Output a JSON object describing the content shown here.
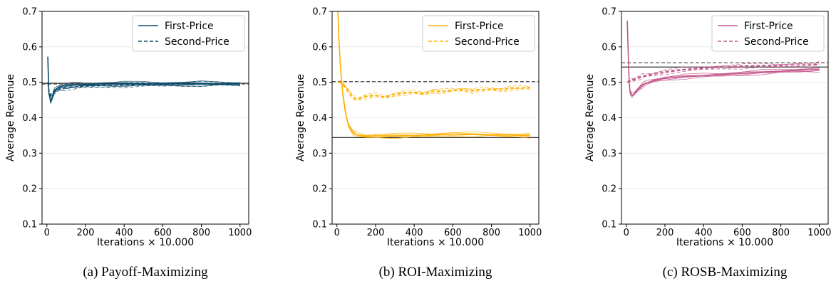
{
  "chart_data": [
    {
      "type": "line",
      "caption": "(a) Payoff-Maximizing",
      "xlabel": "Iterations × 10.000",
      "ylabel": "Average Revenue",
      "xlim": [
        -25,
        1045
      ],
      "ylim": [
        0.1,
        0.7
      ],
      "xticks": [
        0,
        200,
        400,
        600,
        800,
        1000
      ],
      "yticks": [
        0.1,
        0.2,
        0.3,
        0.4,
        0.5,
        0.6,
        0.7
      ],
      "grid": "horizontal",
      "legend": {
        "placement": "top-right",
        "entries": [
          {
            "label": "First-Price",
            "style": "solid"
          },
          {
            "label": "Second-Price",
            "style": "dashed"
          }
        ]
      },
      "color": "#0f4c6b",
      "reference_lines": [
        {
          "style": "solid",
          "color": "#333333",
          "y": 0.497
        },
        {
          "style": "dashed",
          "color": "#555555",
          "y": 0.495
        }
      ],
      "series": [
        {
          "style": "solid",
          "x": [
            5,
            10,
            20,
            30,
            40,
            60,
            80,
            100,
            150,
            200,
            300,
            400,
            500,
            600,
            700,
            800,
            900,
            1000
          ],
          "y": [
            0.572,
            0.47,
            0.445,
            0.462,
            0.477,
            0.486,
            0.489,
            0.491,
            0.493,
            0.494,
            0.495,
            0.496,
            0.496,
            0.496,
            0.496,
            0.496,
            0.496,
            0.496
          ]
        },
        {
          "style": "dashed",
          "x": [
            5,
            10,
            20,
            30,
            40,
            60,
            80,
            100,
            150,
            200,
            300,
            400,
            500,
            600,
            700,
            800,
            900,
            1000
          ],
          "y": [
            0.5,
            0.478,
            0.462,
            0.468,
            0.474,
            0.479,
            0.482,
            0.484,
            0.487,
            0.489,
            0.491,
            0.492,
            0.493,
            0.494,
            0.495,
            0.495,
            0.495,
            0.495
          ]
        }
      ]
    },
    {
      "type": "line",
      "caption": "(b) ROI-Maximizing",
      "xlabel": "Iterations × 10.000",
      "ylabel": "Average Revenue",
      "xlim": [
        -25,
        1045
      ],
      "ylim": [
        0.1,
        0.7
      ],
      "xticks": [
        0,
        200,
        400,
        600,
        800,
        1000
      ],
      "yticks": [
        0.1,
        0.2,
        0.3,
        0.4,
        0.5,
        0.6,
        0.7
      ],
      "grid": "horizontal",
      "legend": {
        "placement": "top-right",
        "entries": [
          {
            "label": "First-Price",
            "style": "solid"
          },
          {
            "label": "Second-Price",
            "style": "dashed"
          }
        ]
      },
      "color": "#ffb000",
      "reference_lines": [
        {
          "style": "solid",
          "color": "#333333",
          "y": 0.344
        },
        {
          "style": "dashed",
          "color": "#555555",
          "y": 0.502
        }
      ],
      "series": [
        {
          "style": "solid",
          "x": [
            5,
            10,
            20,
            30,
            40,
            50,
            60,
            80,
            100,
            150,
            200,
            300,
            400,
            500,
            600,
            700,
            800,
            900,
            1000
          ],
          "y": [
            0.7,
            0.62,
            0.53,
            0.47,
            0.43,
            0.4,
            0.38,
            0.36,
            0.352,
            0.348,
            0.349,
            0.349,
            0.35,
            0.352,
            0.354,
            0.353,
            0.352,
            0.351,
            0.35
          ]
        },
        {
          "style": "dashed",
          "x": [
            5,
            20,
            40,
            60,
            80,
            100,
            120,
            150,
            200,
            250,
            300,
            350,
            400,
            450,
            500,
            550,
            600,
            650,
            700,
            750,
            800,
            850,
            900,
            950,
            1000
          ],
          "y": [
            0.5,
            0.5,
            0.49,
            0.475,
            0.46,
            0.452,
            0.455,
            0.46,
            0.463,
            0.458,
            0.466,
            0.47,
            0.472,
            0.468,
            0.476,
            0.474,
            0.478,
            0.48,
            0.476,
            0.479,
            0.481,
            0.479,
            0.483,
            0.484,
            0.485
          ]
        }
      ]
    },
    {
      "type": "line",
      "caption": "(c) ROSB-Maximizing",
      "xlabel": "Iterations × 10.000",
      "ylabel": "Average Revenue",
      "xlim": [
        -25,
        1045
      ],
      "ylim": [
        0.1,
        0.7
      ],
      "xticks": [
        0,
        200,
        400,
        600,
        800,
        1000
      ],
      "yticks": [
        0.1,
        0.2,
        0.3,
        0.4,
        0.5,
        0.6,
        0.7
      ],
      "grid": "horizontal",
      "legend": {
        "placement": "top-right",
        "entries": [
          {
            "label": "First-Price",
            "style": "solid"
          },
          {
            "label": "Second-Price",
            "style": "dashed"
          }
        ]
      },
      "color": "#c2568a",
      "reference_lines": [
        {
          "style": "solid",
          "color": "#333333",
          "y": 0.543
        },
        {
          "style": "dashed",
          "color": "#555555",
          "y": 0.555
        }
      ],
      "series": [
        {
          "style": "solid",
          "x": [
            5,
            10,
            15,
            20,
            30,
            40,
            60,
            80,
            100,
            150,
            200,
            300,
            400,
            500,
            600,
            700,
            800,
            900,
            1000
          ],
          "y": [
            0.674,
            0.58,
            0.5,
            0.472,
            0.463,
            0.467,
            0.48,
            0.49,
            0.497,
            0.506,
            0.511,
            0.516,
            0.519,
            0.522,
            0.525,
            0.528,
            0.531,
            0.534,
            0.536
          ]
        },
        {
          "style": "dashed",
          "x": [
            5,
            20,
            40,
            60,
            80,
            100,
            150,
            200,
            300,
            400,
            500,
            600,
            700,
            800,
            900,
            1000
          ],
          "y": [
            0.5,
            0.505,
            0.508,
            0.512,
            0.516,
            0.519,
            0.524,
            0.529,
            0.536,
            0.54,
            0.543,
            0.545,
            0.547,
            0.548,
            0.549,
            0.55
          ]
        }
      ]
    }
  ]
}
